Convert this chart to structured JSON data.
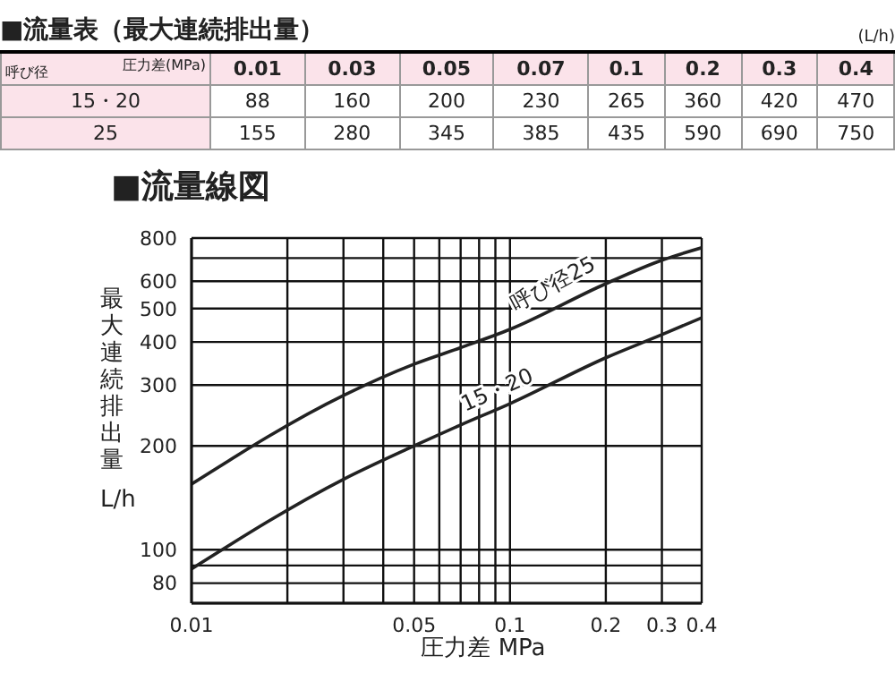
{
  "chart_data": [
    {
      "type": "heatmap",
      "title": "■流量表（最大連続排出量）",
      "annotations": [
        "(L/h)"
      ],
      "xlabel": "圧力差(MPa)",
      "ylabel": "呼び径",
      "categories": [
        "0.01",
        "0.03",
        "0.05",
        "0.07",
        "0.1",
        "0.2",
        "0.3",
        "0.4"
      ],
      "y_categories": [
        "15・20",
        "25"
      ],
      "cells": [
        [
          88,
          160,
          200,
          230,
          265,
          360,
          420,
          470
        ],
        [
          155,
          280,
          345,
          385,
          435,
          590,
          690,
          750
        ]
      ],
      "data_labels": true
    },
    {
      "type": "line",
      "title": "■流量線図",
      "xlabel": "圧力差  MPa",
      "ylabel": "最大連続排出量",
      "annotations": [
        "L/h"
      ],
      "x": [
        0.01,
        0.03,
        0.05,
        0.07,
        0.1,
        0.2,
        0.3,
        0.4
      ],
      "series": [
        {
          "name": "15・20",
          "color": "#222222",
          "values": [
            88,
            160,
            200,
            230,
            265,
            360,
            420,
            470
          ]
        },
        {
          "name": "呼び径25",
          "color": "#222222",
          "values": [
            155,
            280,
            345,
            385,
            435,
            590,
            690,
            750
          ]
        }
      ],
      "log": "xy",
      "xlim": [
        0.01,
        0.4
      ],
      "xticks": [
        0.01,
        {
          "value": 0.02,
          "label": null
        },
        {
          "value": 0.03,
          "label": null
        },
        {
          "value": 0.04,
          "label": null
        },
        0.05,
        {
          "value": 0.06,
          "label": null
        },
        {
          "value": 0.07,
          "label": null
        },
        {
          "value": 0.08,
          "label": null
        },
        {
          "value": 0.09,
          "label": null
        },
        0.1,
        0.2,
        0.3,
        0.4
      ],
      "ylim": [
        70,
        800
      ],
      "yticks": [
        80,
        {
          "value": 90,
          "label": null
        },
        100,
        200,
        300,
        400,
        500,
        600,
        {
          "value": 700,
          "label": null
        },
        800
      ],
      "grid": true,
      "marker": "none",
      "line_style": "solid"
    }
  ]
}
